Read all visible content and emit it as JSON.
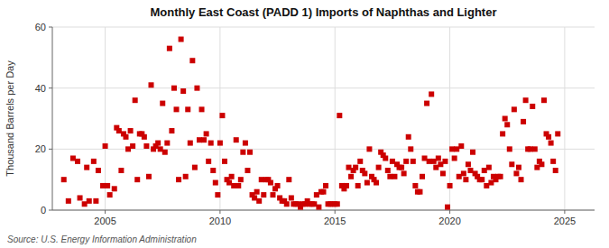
{
  "chart_data": {
    "type": "scatter",
    "title": "Monthly East Coast (PADD 1) Imports of Naphthas and Lighter",
    "ylabel": "Thousand Barrels per Day",
    "source": "Source: U.S. Energy Information Administration",
    "color": "#cc0000",
    "marker": "square",
    "grid": true,
    "xlim": [
      2002.7,
      2026.3
    ],
    "xticks": [
      2005,
      2010,
      2015,
      2020,
      2025
    ],
    "ylim": [
      0,
      60
    ],
    "yticks": [
      0,
      20,
      40,
      60
    ],
    "x": [
      2003.2,
      2003.4,
      2003.6,
      2003.8,
      2003.9,
      2004.1,
      2004.2,
      2004.3,
      2004.5,
      2004.6,
      2004.7,
      2004.9,
      2005.0,
      2005.1,
      2005.2,
      2005.4,
      2005.5,
      2005.6,
      2005.7,
      2005.8,
      2005.9,
      2006.0,
      2006.1,
      2006.2,
      2006.3,
      2006.4,
      2006.5,
      2006.6,
      2006.7,
      2006.8,
      2006.9,
      2007.0,
      2007.1,
      2007.2,
      2007.3,
      2007.4,
      2007.5,
      2007.6,
      2007.7,
      2007.8,
      2007.9,
      2008.0,
      2008.1,
      2008.2,
      2008.3,
      2008.4,
      2008.5,
      2008.6,
      2008.7,
      2008.8,
      2008.9,
      2009.0,
      2009.1,
      2009.2,
      2009.3,
      2009.4,
      2009.5,
      2009.6,
      2009.7,
      2009.8,
      2009.9,
      2010.0,
      2010.1,
      2010.2,
      2010.3,
      2010.4,
      2010.5,
      2010.6,
      2010.7,
      2010.8,
      2010.9,
      2011.0,
      2011.1,
      2011.2,
      2011.3,
      2011.4,
      2011.5,
      2011.6,
      2011.7,
      2011.8,
      2011.9,
      2012.0,
      2012.1,
      2012.2,
      2012.3,
      2012.4,
      2012.5,
      2012.6,
      2012.7,
      2012.8,
      2012.9,
      2013.0,
      2013.1,
      2013.2,
      2013.3,
      2013.4,
      2013.5,
      2013.6,
      2013.7,
      2013.8,
      2013.9,
      2014.0,
      2014.1,
      2014.2,
      2014.3,
      2014.4,
      2014.5,
      2014.6,
      2014.7,
      2014.8,
      2014.9,
      2015.0,
      2015.1,
      2015.2,
      2015.3,
      2015.4,
      2015.5,
      2015.6,
      2015.7,
      2015.8,
      2015.9,
      2016.0,
      2016.1,
      2016.2,
      2016.3,
      2016.4,
      2016.5,
      2016.6,
      2016.7,
      2016.8,
      2016.9,
      2017.0,
      2017.1,
      2017.2,
      2017.3,
      2017.4,
      2017.5,
      2017.6,
      2017.7,
      2017.8,
      2017.9,
      2018.0,
      2018.1,
      2018.2,
      2018.3,
      2018.4,
      2018.5,
      2018.6,
      2018.7,
      2018.8,
      2018.9,
      2019.0,
      2019.1,
      2019.2,
      2019.3,
      2019.4,
      2019.5,
      2019.6,
      2019.7,
      2019.8,
      2019.9,
      2020.0,
      2020.1,
      2020.2,
      2020.3,
      2020.4,
      2020.5,
      2020.6,
      2020.7,
      2020.8,
      2020.9,
      2021.0,
      2021.1,
      2021.2,
      2021.3,
      2021.4,
      2021.5,
      2021.6,
      2021.7,
      2021.8,
      2021.9,
      2022.0,
      2022.1,
      2022.2,
      2022.3,
      2022.4,
      2022.5,
      2022.6,
      2022.7,
      2022.8,
      2022.9,
      2023.0,
      2023.1,
      2023.2,
      2023.3,
      2023.4,
      2023.5,
      2023.6,
      2023.7,
      2023.8,
      2023.9,
      2024.0,
      2024.1,
      2024.2,
      2024.3,
      2024.4,
      2024.5,
      2024.6,
      2024.7
    ],
    "values": [
      10,
      3,
      17,
      16,
      4,
      2,
      14,
      3,
      16,
      3,
      13,
      8,
      21,
      8,
      5,
      7,
      27,
      26,
      13,
      25,
      24,
      20,
      26,
      21,
      36,
      10,
      25,
      25,
      24,
      21,
      11,
      41,
      20,
      21,
      22,
      20,
      35,
      19,
      22,
      53,
      26,
      40,
      33,
      10,
      56,
      39,
      11,
      33,
      22,
      49,
      14,
      40,
      23,
      33,
      23,
      25,
      16,
      22,
      13,
      9,
      5,
      22,
      31,
      16,
      10,
      9,
      11,
      8,
      23,
      8,
      10,
      19,
      22,
      13,
      19,
      5,
      4,
      6,
      3,
      10,
      5,
      10,
      10,
      9,
      5,
      7,
      8,
      4,
      3,
      3,
      2,
      10,
      4,
      2,
      2,
      2,
      1,
      2,
      2,
      3,
      2,
      2,
      2,
      5,
      1,
      6,
      6,
      8,
      2,
      2,
      2,
      2,
      2,
      31,
      8,
      7,
      8,
      14,
      11,
      13,
      14,
      8,
      16,
      13,
      12,
      9,
      20,
      11,
      10,
      9,
      14,
      19,
      18,
      17,
      13,
      11,
      16,
      11,
      15,
      14,
      14,
      12,
      16,
      24,
      20,
      16,
      8,
      6,
      6,
      11,
      17,
      35,
      16,
      38,
      16,
      14,
      17,
      15,
      12,
      16,
      1,
      8,
      20,
      17,
      20,
      11,
      21,
      12,
      10,
      15,
      13,
      19,
      12,
      11,
      10,
      10,
      13,
      8,
      14,
      9,
      11,
      10,
      11,
      11,
      25,
      30,
      28,
      20,
      15,
      33,
      12,
      14,
      10,
      29,
      36,
      20,
      20,
      34,
      20,
      14,
      16,
      15,
      36,
      25,
      24,
      22,
      16,
      13,
      25
    ]
  }
}
